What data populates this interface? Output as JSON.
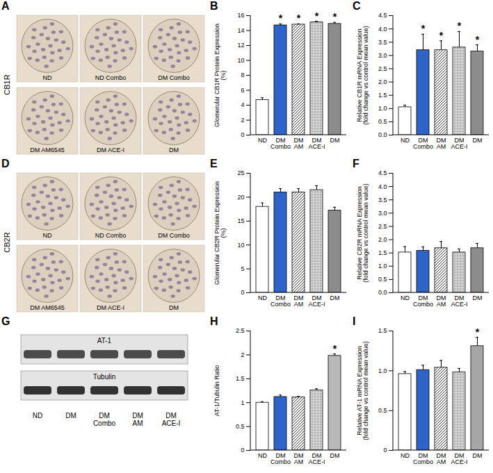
{
  "micrographs": [
    {
      "panel": "A",
      "stain": "CB1R",
      "tiles": [
        "ND",
        "ND Combo",
        "DM Combo",
        "DM AM6545",
        "DM ACE-I",
        "DM"
      ]
    },
    {
      "panel": "D",
      "stain": "CB2R",
      "tiles": [
        "ND",
        "ND Combo",
        "DM Combo",
        "DM AM6545",
        "DM ACE-I",
        "DM"
      ]
    }
  ],
  "blot": {
    "panel": "G",
    "bands": [
      "AT-1",
      "Tubulin"
    ],
    "lanes": [
      "ND",
      "DM",
      "DM\nCombo",
      "DM\nAM",
      "DM\nACE-I"
    ]
  },
  "chart_data": [
    {
      "type": "bar",
      "title": "B",
      "categories": [
        "ND",
        "DM\nCombo",
        "DM\nAM",
        "DM\nACE-I",
        "DM"
      ],
      "values": [
        4.7,
        14.7,
        14.8,
        15.1,
        14.9
      ],
      "errors": [
        0.3,
        0.2,
        0.1,
        0.15,
        0.2
      ],
      "colors": [
        "#ffffff",
        "#2e64c8",
        "#ffffff",
        "#d0d0d0",
        "#8c8c8c"
      ],
      "ylabel": "Glomerular CB1R Protein Expression\n(%)",
      "ylim": [
        0,
        16
      ],
      "yticks": [
        0,
        2,
        4,
        6,
        8,
        10,
        12,
        14,
        16
      ],
      "annotations": [
        {
          "category": "DM\nCombo",
          "text": "*"
        },
        {
          "category": "DM\nAM",
          "text": "*"
        },
        {
          "category": "DM\nACE-I",
          "text": "*"
        },
        {
          "category": "DM",
          "text": "*"
        }
      ]
    },
    {
      "type": "bar",
      "title": "C",
      "categories": [
        "ND",
        "DM\nCombo",
        "DM\nAM",
        "DM\nACE-I",
        "DM"
      ],
      "values": [
        1.05,
        3.2,
        3.2,
        3.3,
        3.15
      ],
      "errors": [
        0.08,
        0.6,
        0.35,
        0.6,
        0.25
      ],
      "colors": [
        "#ffffff",
        "#2e64c8",
        "#ffffff",
        "#d0d0d0",
        "#8c8c8c"
      ],
      "ylabel": "Relative CB1R mRNA Expression\n(fold change vs control mean value)",
      "ylim": [
        0,
        4.5
      ],
      "yticks": [
        {
          "value": 0,
          "label": "0.0"
        },
        0.5,
        {
          "value": 1,
          "label": "1.0"
        },
        1.5,
        {
          "value": 2,
          "label": "2.0"
        },
        2.5,
        {
          "value": 3,
          "label": "3.0"
        },
        3.5,
        {
          "value": 4,
          "label": "4.0"
        },
        4.5
      ],
      "annotations": [
        {
          "category": "DM\nCombo",
          "text": "*"
        },
        {
          "category": "DM\nAM",
          "text": "*"
        },
        {
          "category": "DM\nACE-I",
          "text": "*"
        },
        {
          "category": "DM",
          "text": "*"
        }
      ]
    },
    {
      "type": "bar",
      "title": "E",
      "categories": [
        "ND",
        "DM\nCombo",
        "DM\nAM",
        "DM\nACE-I",
        "DM"
      ],
      "values": [
        18,
        21,
        21,
        21.5,
        17.2
      ],
      "errors": [
        0.8,
        0.8,
        0.8,
        0.9,
        0.7
      ],
      "colors": [
        "#ffffff",
        "#2e64c8",
        "#ffffff",
        "#d0d0d0",
        "#8c8c8c"
      ],
      "ylabel": "Glomerular CB2R Protein Expression\n(%)",
      "ylim": [
        0,
        25
      ],
      "yticks": [
        0,
        5,
        10,
        15,
        20,
        25
      ]
    },
    {
      "type": "bar",
      "title": "F",
      "categories": [
        "ND",
        "DM\nCombo",
        "DM\nAM",
        "DM\nACE-I",
        "DM"
      ],
      "values": [
        1.52,
        1.58,
        1.68,
        1.52,
        1.68
      ],
      "errors": [
        0.22,
        0.15,
        0.25,
        0.13,
        0.18
      ],
      "colors": [
        "#ffffff",
        "#2e64c8",
        "#ffffff",
        "#d0d0d0",
        "#8c8c8c"
      ],
      "ylabel": "Relative CB2R mRNA Expression\n(fold change vs control mean value)",
      "ylim": [
        0,
        4.5
      ],
      "yticks": [
        {
          "value": 0,
          "label": "0.0"
        },
        0.5,
        {
          "value": 1,
          "label": "1.0"
        },
        1.5,
        {
          "value": 2,
          "label": "2.0"
        },
        2.5,
        {
          "value": 3,
          "label": "3.0"
        },
        3.5,
        {
          "value": 4,
          "label": "4.0"
        },
        4.5
      ]
    },
    {
      "type": "bar",
      "title": "H",
      "categories": [
        "ND",
        "DM\nCombo",
        "DM\nAM",
        "DM\nACE-I",
        "DM"
      ],
      "values": [
        1.0,
        1.12,
        1.11,
        1.26,
        1.98
      ],
      "errors": [
        0.02,
        0.04,
        0.02,
        0.03,
        0.04
      ],
      "colors": [
        "#ffffff",
        "#2e64c8",
        "#ffffff",
        "#d0d0d0",
        "#b8b8b8"
      ],
      "ylabel": "AT-1/Tubulin Ratio",
      "ylim": [
        0,
        2.5
      ],
      "yticks": [
        0,
        0.5,
        1,
        1.5,
        2,
        2.5
      ],
      "annotations": [
        {
          "category": "DM",
          "text": "*"
        }
      ]
    },
    {
      "type": "bar",
      "title": "I",
      "categories": [
        "ND",
        "DM\nCombo",
        "DM\nAM",
        "DM\nACE-I",
        "DM"
      ],
      "values": [
        0.96,
        1.01,
        1.04,
        0.98,
        1.31
      ],
      "errors": [
        0.03,
        0.06,
        0.09,
        0.05,
        0.11
      ],
      "colors": [
        "#ffffff",
        "#2e64c8",
        "#ffffff",
        "#d0d0d0",
        "#a6a6a6"
      ],
      "ylabel": "Relative AT-1 mRNA Expression\n(fold change vs control mean value)",
      "ylim": [
        0,
        1.5
      ],
      "yticks": [
        0,
        0.5,
        {
          "value": 1,
          "label": "1.0"
        },
        1.5
      ],
      "annotations": [
        {
          "category": "DM",
          "text": "*"
        }
      ]
    }
  ]
}
